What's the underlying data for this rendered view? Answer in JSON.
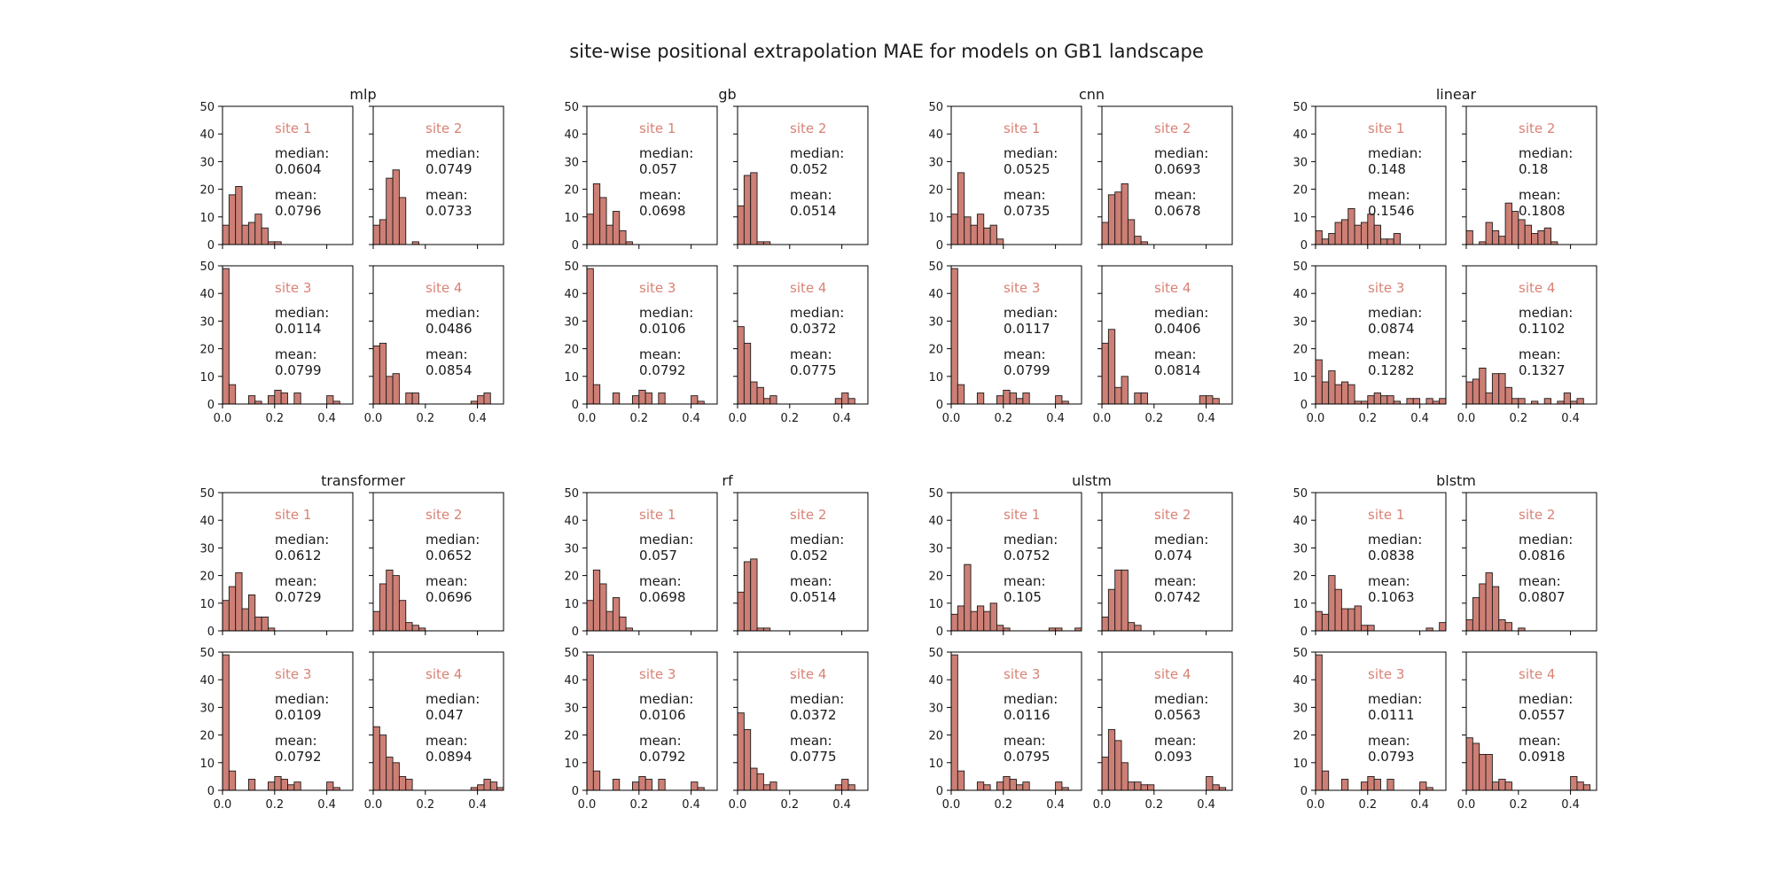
{
  "figure_title": "site-wise positional extrapolation MAE for models on GB1 landscape",
  "colors": {
    "bar_fill": "#cd7f75",
    "bar_edge": "#1a1a1a",
    "site_label": "#d98275",
    "text": "#1a1a1a"
  },
  "chart_data": {
    "type": "bar",
    "subtype": "histogram",
    "bin_width": 0.025,
    "xlim": [
      0,
      0.5
    ],
    "ylim": [
      0,
      50
    ],
    "xticks": [
      "0.0",
      "0.2",
      "0.4"
    ],
    "yticks": [
      "0",
      "10",
      "20",
      "30",
      "40",
      "50"
    ],
    "bin_starts": [
      0.0,
      0.025,
      0.05,
      0.075,
      0.1,
      0.125,
      0.15,
      0.175,
      0.2,
      0.225,
      0.25,
      0.275,
      0.3,
      0.325,
      0.35,
      0.375,
      0.4,
      0.425,
      0.45,
      0.475
    ],
    "models": [
      {
        "name": "mlp",
        "sites": [
          {
            "label": "site 1",
            "median_label": "median:",
            "median": "0.0604",
            "mean_label": "mean:",
            "mean": "0.0796",
            "counts": [
              7,
              18,
              21,
              7,
              8,
              11,
              6,
              1,
              1,
              0,
              0,
              0,
              0,
              0,
              0,
              0,
              0,
              0,
              0,
              0
            ]
          },
          {
            "label": "site 2",
            "median_label": "median:",
            "median": "0.0749",
            "mean_label": "mean:",
            "mean": "0.0733",
            "counts": [
              7,
              9,
              24,
              27,
              17,
              0,
              1,
              0,
              0,
              0,
              0,
              0,
              0,
              0,
              0,
              0,
              0,
              0,
              0,
              0
            ]
          },
          {
            "label": "site 3",
            "median_label": "median:",
            "median": "0.0114",
            "mean_label": "mean:",
            "mean": "0.0799",
            "counts": [
              49,
              7,
              0,
              0,
              3,
              1,
              0,
              3,
              5,
              4,
              0,
              4,
              0,
              0,
              0,
              0,
              3,
              1,
              0,
              0
            ]
          },
          {
            "label": "site 4",
            "median_label": "median:",
            "median": "0.0486",
            "mean_label": "mean:",
            "mean": "0.0854",
            "counts": [
              21,
              22,
              10,
              11,
              0,
              4,
              4,
              0,
              0,
              0,
              0,
              0,
              0,
              0,
              0,
              1,
              3,
              4,
              0,
              0
            ]
          }
        ]
      },
      {
        "name": "gb",
        "sites": [
          {
            "label": "site 1",
            "median_label": "median:",
            "median": "0.057",
            "mean_label": "mean:",
            "mean": "0.0698",
            "counts": [
              11,
              22,
              17,
              7,
              12,
              5,
              1,
              0,
              0,
              0,
              0,
              0,
              0,
              0,
              0,
              0,
              0,
              0,
              0,
              0
            ]
          },
          {
            "label": "site 2",
            "median_label": "median:",
            "median": "0.052",
            "mean_label": "mean:",
            "mean": "0.0514",
            "counts": [
              14,
              25,
              26,
              1,
              1,
              0,
              0,
              0,
              0,
              0,
              0,
              0,
              0,
              0,
              0,
              0,
              0,
              0,
              0,
              0
            ]
          },
          {
            "label": "site 3",
            "median_label": "median:",
            "median": "0.0106",
            "mean_label": "mean:",
            "mean": "0.0792",
            "counts": [
              49,
              7,
              0,
              0,
              4,
              0,
              0,
              3,
              5,
              4,
              0,
              4,
              0,
              0,
              0,
              0,
              3,
              1,
              0,
              0
            ]
          },
          {
            "label": "site 4",
            "median_label": "median:",
            "median": "0.0372",
            "mean_label": "mean:",
            "mean": "0.0775",
            "counts": [
              28,
              22,
              8,
              6,
              2,
              3,
              0,
              0,
              0,
              0,
              0,
              0,
              0,
              0,
              0,
              2,
              4,
              2,
              0,
              0
            ]
          }
        ]
      },
      {
        "name": "cnn",
        "sites": [
          {
            "label": "site 1",
            "median_label": "median:",
            "median": "0.0525",
            "mean_label": "mean:",
            "mean": "0.0735",
            "counts": [
              11,
              26,
              10,
              7,
              11,
              6,
              7,
              2,
              0,
              0,
              0,
              0,
              0,
              0,
              0,
              0,
              0,
              0,
              0,
              0
            ]
          },
          {
            "label": "site 2",
            "median_label": "median:",
            "median": "0.0693",
            "mean_label": "mean:",
            "mean": "0.0678",
            "counts": [
              8,
              18,
              19,
              22,
              9,
              3,
              1,
              0,
              0,
              0,
              0,
              0,
              0,
              0,
              0,
              0,
              0,
              0,
              0,
              0
            ]
          },
          {
            "label": "site 3",
            "median_label": "median:",
            "median": "0.0117",
            "mean_label": "mean:",
            "mean": "0.0799",
            "counts": [
              49,
              7,
              0,
              0,
              4,
              0,
              0,
              3,
              5,
              4,
              2,
              4,
              0,
              0,
              0,
              0,
              3,
              1,
              0,
              0
            ]
          },
          {
            "label": "site 4",
            "median_label": "median:",
            "median": "0.0406",
            "mean_label": "mean:",
            "mean": "0.0814",
            "counts": [
              22,
              27,
              6,
              10,
              0,
              4,
              4,
              0,
              0,
              0,
              0,
              0,
              0,
              0,
              0,
              3,
              3,
              2,
              0,
              0
            ]
          }
        ]
      },
      {
        "name": "linear",
        "sites": [
          {
            "label": "site 1",
            "median_label": "median:",
            "median": "0.148",
            "mean_label": "mean:",
            "mean": "0.1546",
            "counts": [
              5,
              2,
              4,
              8,
              9,
              13,
              7,
              8,
              11,
              7,
              2,
              2,
              4,
              0,
              0,
              0,
              0,
              0,
              0,
              0
            ]
          },
          {
            "label": "site 2",
            "median_label": "median:",
            "median": "0.18",
            "mean_label": "mean:",
            "mean": "0.1808",
            "counts": [
              5,
              0,
              1,
              8,
              5,
              3,
              15,
              12,
              9,
              7,
              4,
              5,
              6,
              1,
              0,
              0,
              0,
              0,
              0,
              0
            ]
          },
          {
            "label": "site 3",
            "median_label": "median:",
            "median": "0.0874",
            "mean_label": "mean:",
            "mean": "0.1282",
            "counts": [
              16,
              8,
              12,
              7,
              8,
              7,
              1,
              1,
              3,
              4,
              3,
              3,
              1,
              0,
              2,
              2,
              0,
              2,
              1,
              2
            ]
          },
          {
            "label": "site 4",
            "median_label": "median:",
            "median": "0.1102",
            "mean_label": "mean:",
            "mean": "0.1327",
            "counts": [
              8,
              9,
              13,
              4,
              11,
              11,
              6,
              2,
              2,
              0,
              1,
              0,
              2,
              0,
              1,
              4,
              1,
              2,
              0,
              0
            ]
          }
        ]
      },
      {
        "name": "transformer",
        "sites": [
          {
            "label": "site 1",
            "median_label": "median:",
            "median": "0.0612",
            "mean_label": "mean:",
            "mean": "0.0729",
            "counts": [
              11,
              16,
              21,
              8,
              13,
              5,
              5,
              1,
              0,
              0,
              0,
              0,
              0,
              0,
              0,
              0,
              0,
              0,
              0,
              0
            ]
          },
          {
            "label": "site 2",
            "median_label": "median:",
            "median": "0.0652",
            "mean_label": "mean:",
            "mean": "0.0696",
            "counts": [
              7,
              17,
              22,
              20,
              11,
              3,
              2,
              1,
              0,
              0,
              0,
              0,
              0,
              0,
              0,
              0,
              0,
              0,
              0,
              0
            ]
          },
          {
            "label": "site 3",
            "median_label": "median:",
            "median": "0.0109",
            "mean_label": "mean:",
            "mean": "0.0792",
            "counts": [
              49,
              7,
              0,
              0,
              4,
              0,
              0,
              3,
              5,
              4,
              2,
              3,
              0,
              0,
              0,
              0,
              3,
              1,
              0,
              0
            ]
          },
          {
            "label": "site 4",
            "median_label": "median:",
            "median": "0.047",
            "mean_label": "mean:",
            "mean": "0.0894",
            "counts": [
              23,
              20,
              12,
              10,
              5,
              4,
              0,
              0,
              0,
              0,
              0,
              0,
              0,
              0,
              0,
              1,
              2,
              4,
              3,
              1
            ]
          }
        ]
      },
      {
        "name": "rf",
        "sites": [
          {
            "label": "site 1",
            "median_label": "median:",
            "median": "0.057",
            "mean_label": "mean:",
            "mean": "0.0698",
            "counts": [
              11,
              22,
              17,
              7,
              12,
              5,
              1,
              0,
              0,
              0,
              0,
              0,
              0,
              0,
              0,
              0,
              0,
              0,
              0,
              0
            ]
          },
          {
            "label": "site 2",
            "median_label": "median:",
            "median": "0.052",
            "mean_label": "mean:",
            "mean": "0.0514",
            "counts": [
              14,
              25,
              26,
              1,
              1,
              0,
              0,
              0,
              0,
              0,
              0,
              0,
              0,
              0,
              0,
              0,
              0,
              0,
              0,
              0
            ]
          },
          {
            "label": "site 3",
            "median_label": "median:",
            "median": "0.0106",
            "mean_label": "mean:",
            "mean": "0.0792",
            "counts": [
              49,
              7,
              0,
              0,
              4,
              0,
              0,
              3,
              5,
              4,
              0,
              4,
              0,
              0,
              0,
              0,
              3,
              1,
              0,
              0
            ]
          },
          {
            "label": "site 4",
            "median_label": "median:",
            "median": "0.0372",
            "mean_label": "mean:",
            "mean": "0.0775",
            "counts": [
              28,
              22,
              8,
              6,
              2,
              3,
              0,
              0,
              0,
              0,
              0,
              0,
              0,
              0,
              0,
              2,
              4,
              2,
              0,
              0
            ]
          }
        ]
      },
      {
        "name": "ulstm",
        "sites": [
          {
            "label": "site 1",
            "median_label": "median:",
            "median": "0.0752",
            "mean_label": "mean:",
            "mean": "0.105",
            "counts": [
              6,
              9,
              24,
              7,
              9,
              7,
              10,
              2,
              1,
              0,
              0,
              0,
              0,
              0,
              0,
              1,
              1,
              0,
              0,
              1
            ]
          },
          {
            "label": "site 2",
            "median_label": "median:",
            "median": "0.074",
            "mean_label": "mean:",
            "mean": "0.0742",
            "counts": [
              5,
              15,
              22,
              22,
              3,
              2,
              0,
              0,
              0,
              0,
              0,
              0,
              0,
              0,
              0,
              0,
              0,
              0,
              0,
              0
            ]
          },
          {
            "label": "site 3",
            "median_label": "median:",
            "median": "0.0116",
            "mean_label": "mean:",
            "mean": "0.0795",
            "counts": [
              49,
              7,
              0,
              0,
              3,
              2,
              0,
              3,
              5,
              4,
              2,
              3,
              0,
              0,
              0,
              0,
              3,
              1,
              0,
              0
            ]
          },
          {
            "label": "site 4",
            "median_label": "median:",
            "median": "0.0563",
            "mean_label": "mean:",
            "mean": "0.093",
            "counts": [
              12,
              22,
              18,
              10,
              3,
              3,
              2,
              2,
              0,
              0,
              0,
              0,
              0,
              0,
              0,
              0,
              5,
              2,
              1,
              0
            ]
          }
        ]
      },
      {
        "name": "blstm",
        "sites": [
          {
            "label": "site 1",
            "median_label": "median:",
            "median": "0.0838",
            "mean_label": "mean:",
            "mean": "0.1063",
            "counts": [
              7,
              6,
              20,
              15,
              8,
              8,
              9,
              2,
              2,
              0,
              0,
              0,
              0,
              0,
              0,
              0,
              0,
              1,
              0,
              3
            ]
          },
          {
            "label": "site 2",
            "median_label": "median:",
            "median": "0.0816",
            "mean_label": "mean:",
            "mean": "0.0807",
            "counts": [
              4,
              12,
              17,
              21,
              16,
              4,
              3,
              0,
              1,
              0,
              0,
              0,
              0,
              0,
              0,
              0,
              0,
              0,
              0,
              0
            ]
          },
          {
            "label": "site 3",
            "median_label": "median:",
            "median": "0.0111",
            "mean_label": "mean:",
            "mean": "0.0793",
            "counts": [
              49,
              7,
              0,
              0,
              4,
              0,
              0,
              3,
              5,
              4,
              0,
              4,
              0,
              0,
              0,
              0,
              3,
              1,
              0,
              0
            ]
          },
          {
            "label": "site 4",
            "median_label": "median:",
            "median": "0.0557",
            "mean_label": "mean:",
            "mean": "0.0918",
            "counts": [
              19,
              17,
              13,
              13,
              3,
              4,
              3,
              0,
              0,
              0,
              0,
              0,
              0,
              0,
              0,
              0,
              5,
              3,
              2,
              0
            ]
          }
        ]
      }
    ]
  }
}
